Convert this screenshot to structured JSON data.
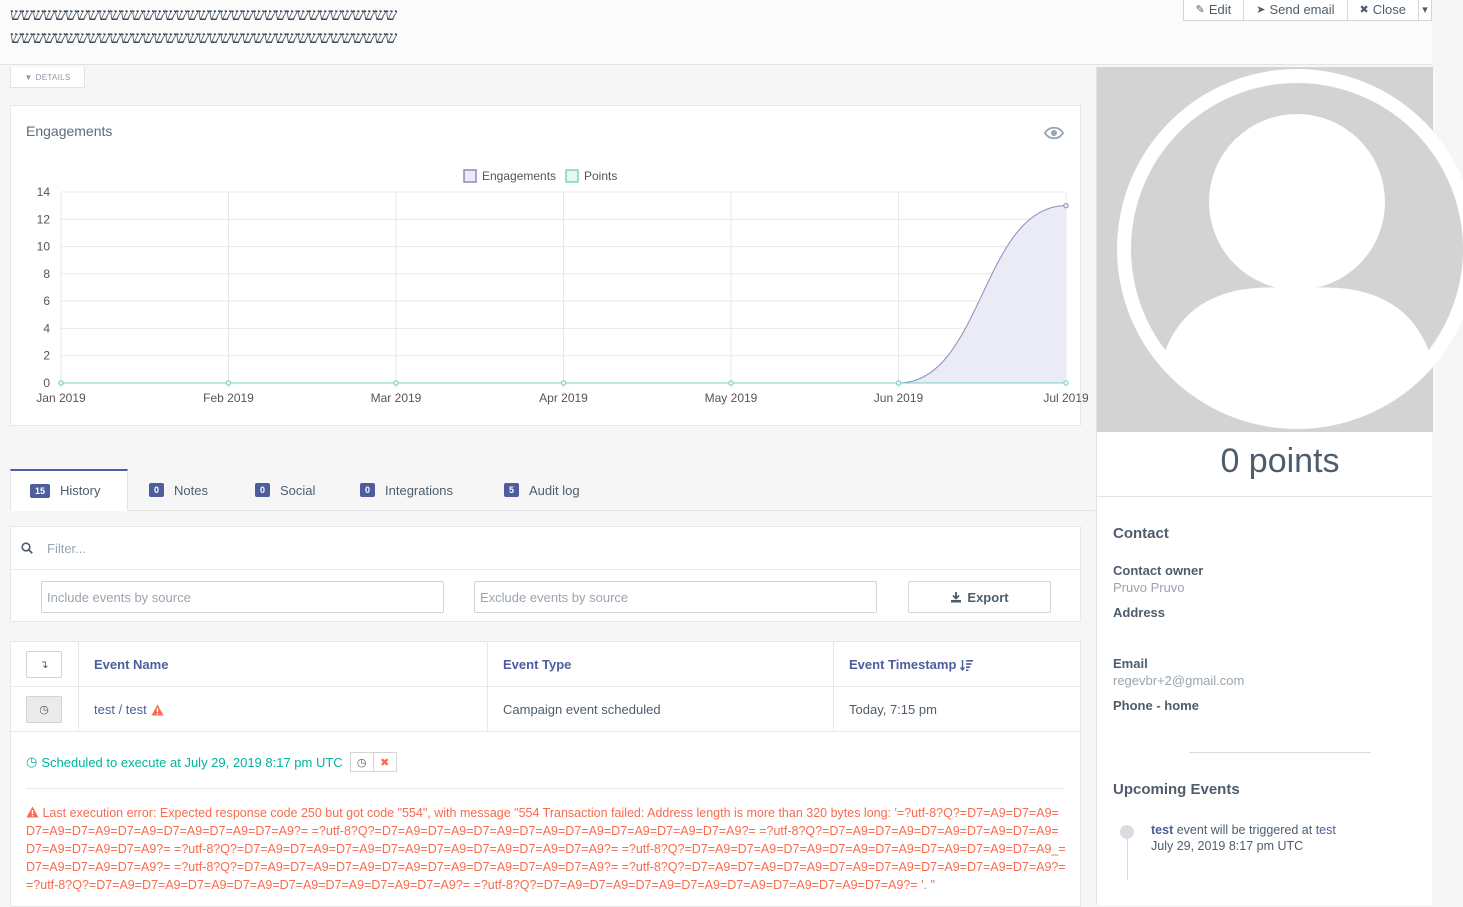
{
  "header": {
    "title_line1": "ששששששששששששששששששששששששששששששששששש",
    "title_line2": "ששששששששששששששששששששששששששששששששששש",
    "buttons": {
      "edit": "Edit",
      "send_email": "Send email",
      "close": "Close"
    }
  },
  "details_toggle": "DETAILS",
  "engagements": {
    "title": "Engagements",
    "chart_data": {
      "type": "line",
      "categories": [
        "Jan 2019",
        "Feb 2019",
        "Mar 2019",
        "Apr 2019",
        "May 2019",
        "Jun 2019",
        "Jul 2019"
      ],
      "series": [
        {
          "name": "Engagements",
          "values": [
            0,
            0,
            0,
            0,
            0,
            0,
            13
          ],
          "color": "#8b8bbf",
          "fill": "#ebebf5"
        },
        {
          "name": "Points",
          "values": [
            0,
            0,
            0,
            0,
            0,
            0,
            0
          ],
          "color": "#7fd3c1",
          "fill": "#e6f7f3"
        }
      ],
      "ylim": [
        0,
        14
      ],
      "yticks": [
        0,
        2,
        4,
        6,
        8,
        10,
        12,
        14
      ],
      "grid": true,
      "legend": "top-center"
    }
  },
  "tabs": [
    {
      "label": "History",
      "count": "15"
    },
    {
      "label": "Notes",
      "count": "0"
    },
    {
      "label": "Social",
      "count": "0"
    },
    {
      "label": "Integrations",
      "count": "0"
    },
    {
      "label": "Audit log",
      "count": "5"
    }
  ],
  "filter": {
    "placeholder": "Filter...",
    "include_placeholder": "Include events by source",
    "exclude_placeholder": "Exclude events by source",
    "export_label": "Export"
  },
  "table": {
    "columns": {
      "name": "Event Name",
      "type": "Event Type",
      "timestamp": "Event Timestamp"
    },
    "rows": [
      {
        "name": "test / test",
        "type": "Campaign event scheduled",
        "timestamp": "Today, 7:15 pm"
      }
    ],
    "detail": {
      "scheduled": "Scheduled to execute at July 29, 2019 8:17 pm UTC",
      "error": "Last execution error: Expected response code 250 but got code \"554\", with message \"554 Transaction failed: Address length is more than 320 bytes long: '=?utf-8?Q?=D7=A9=D7=A9=D7=A9=D7=A9=D7=A9=D7=A9=D7=A9=D7=A9?= =?utf-8?Q?=D7=A9=D7=A9=D7=A9=D7=A9=D7=A9=D7=A9=D7=A9=D7=A9?= =?utf-8?Q?=D7=A9=D7=A9=D7=A9=D7=A9=D7=A9=D7=A9=D7=A9=D7=A9?= =?utf-8?Q?=D7=A9=D7=A9=D7=A9=D7=A9=D7=A9=D7=A9=D7=A9=D7=A9?= =?utf-8?Q?=D7=A9=D7=A9=D7=A9=D7=A9=D7=A9=D7=A9=D7=A9=D7=A9_=D7=A9=D7=A9=D7=A9?= =?utf-8?Q?=D7=A9=D7=A9=D7=A9=D7=A9=D7=A9=D7=A9=D7=A9=D7=A9?= =?utf-8?Q?=D7=A9=D7=A9=D7=A9=D7=A9=D7=A9=D7=A9=D7=A9=D7=A9?= =?utf-8?Q?=D7=A9=D7=A9=D7=A9=D7=A9=D7=A9=D7=A9=D7=A9=D7=A9?= =?utf-8?Q?=D7=A9=D7=A9=D7=A9=D7=A9=D7=A9=D7=A9=D7=A9=D7=A9?= '. \""
    }
  },
  "sidebar": {
    "points": "0 points",
    "contact_heading": "Contact",
    "owner_label": "Contact owner",
    "owner_value": "Pruvo Pruvo",
    "address_label": "Address",
    "email_label": "Email",
    "email_value": "regevbr+2@gmail.com",
    "phone_label": "Phone - home",
    "upcoming_heading": "Upcoming Events",
    "upcoming": {
      "name": "test",
      "text": "event will be triggered at",
      "target": "test",
      "date": "July 29, 2019 8:17 pm UTC"
    }
  }
}
